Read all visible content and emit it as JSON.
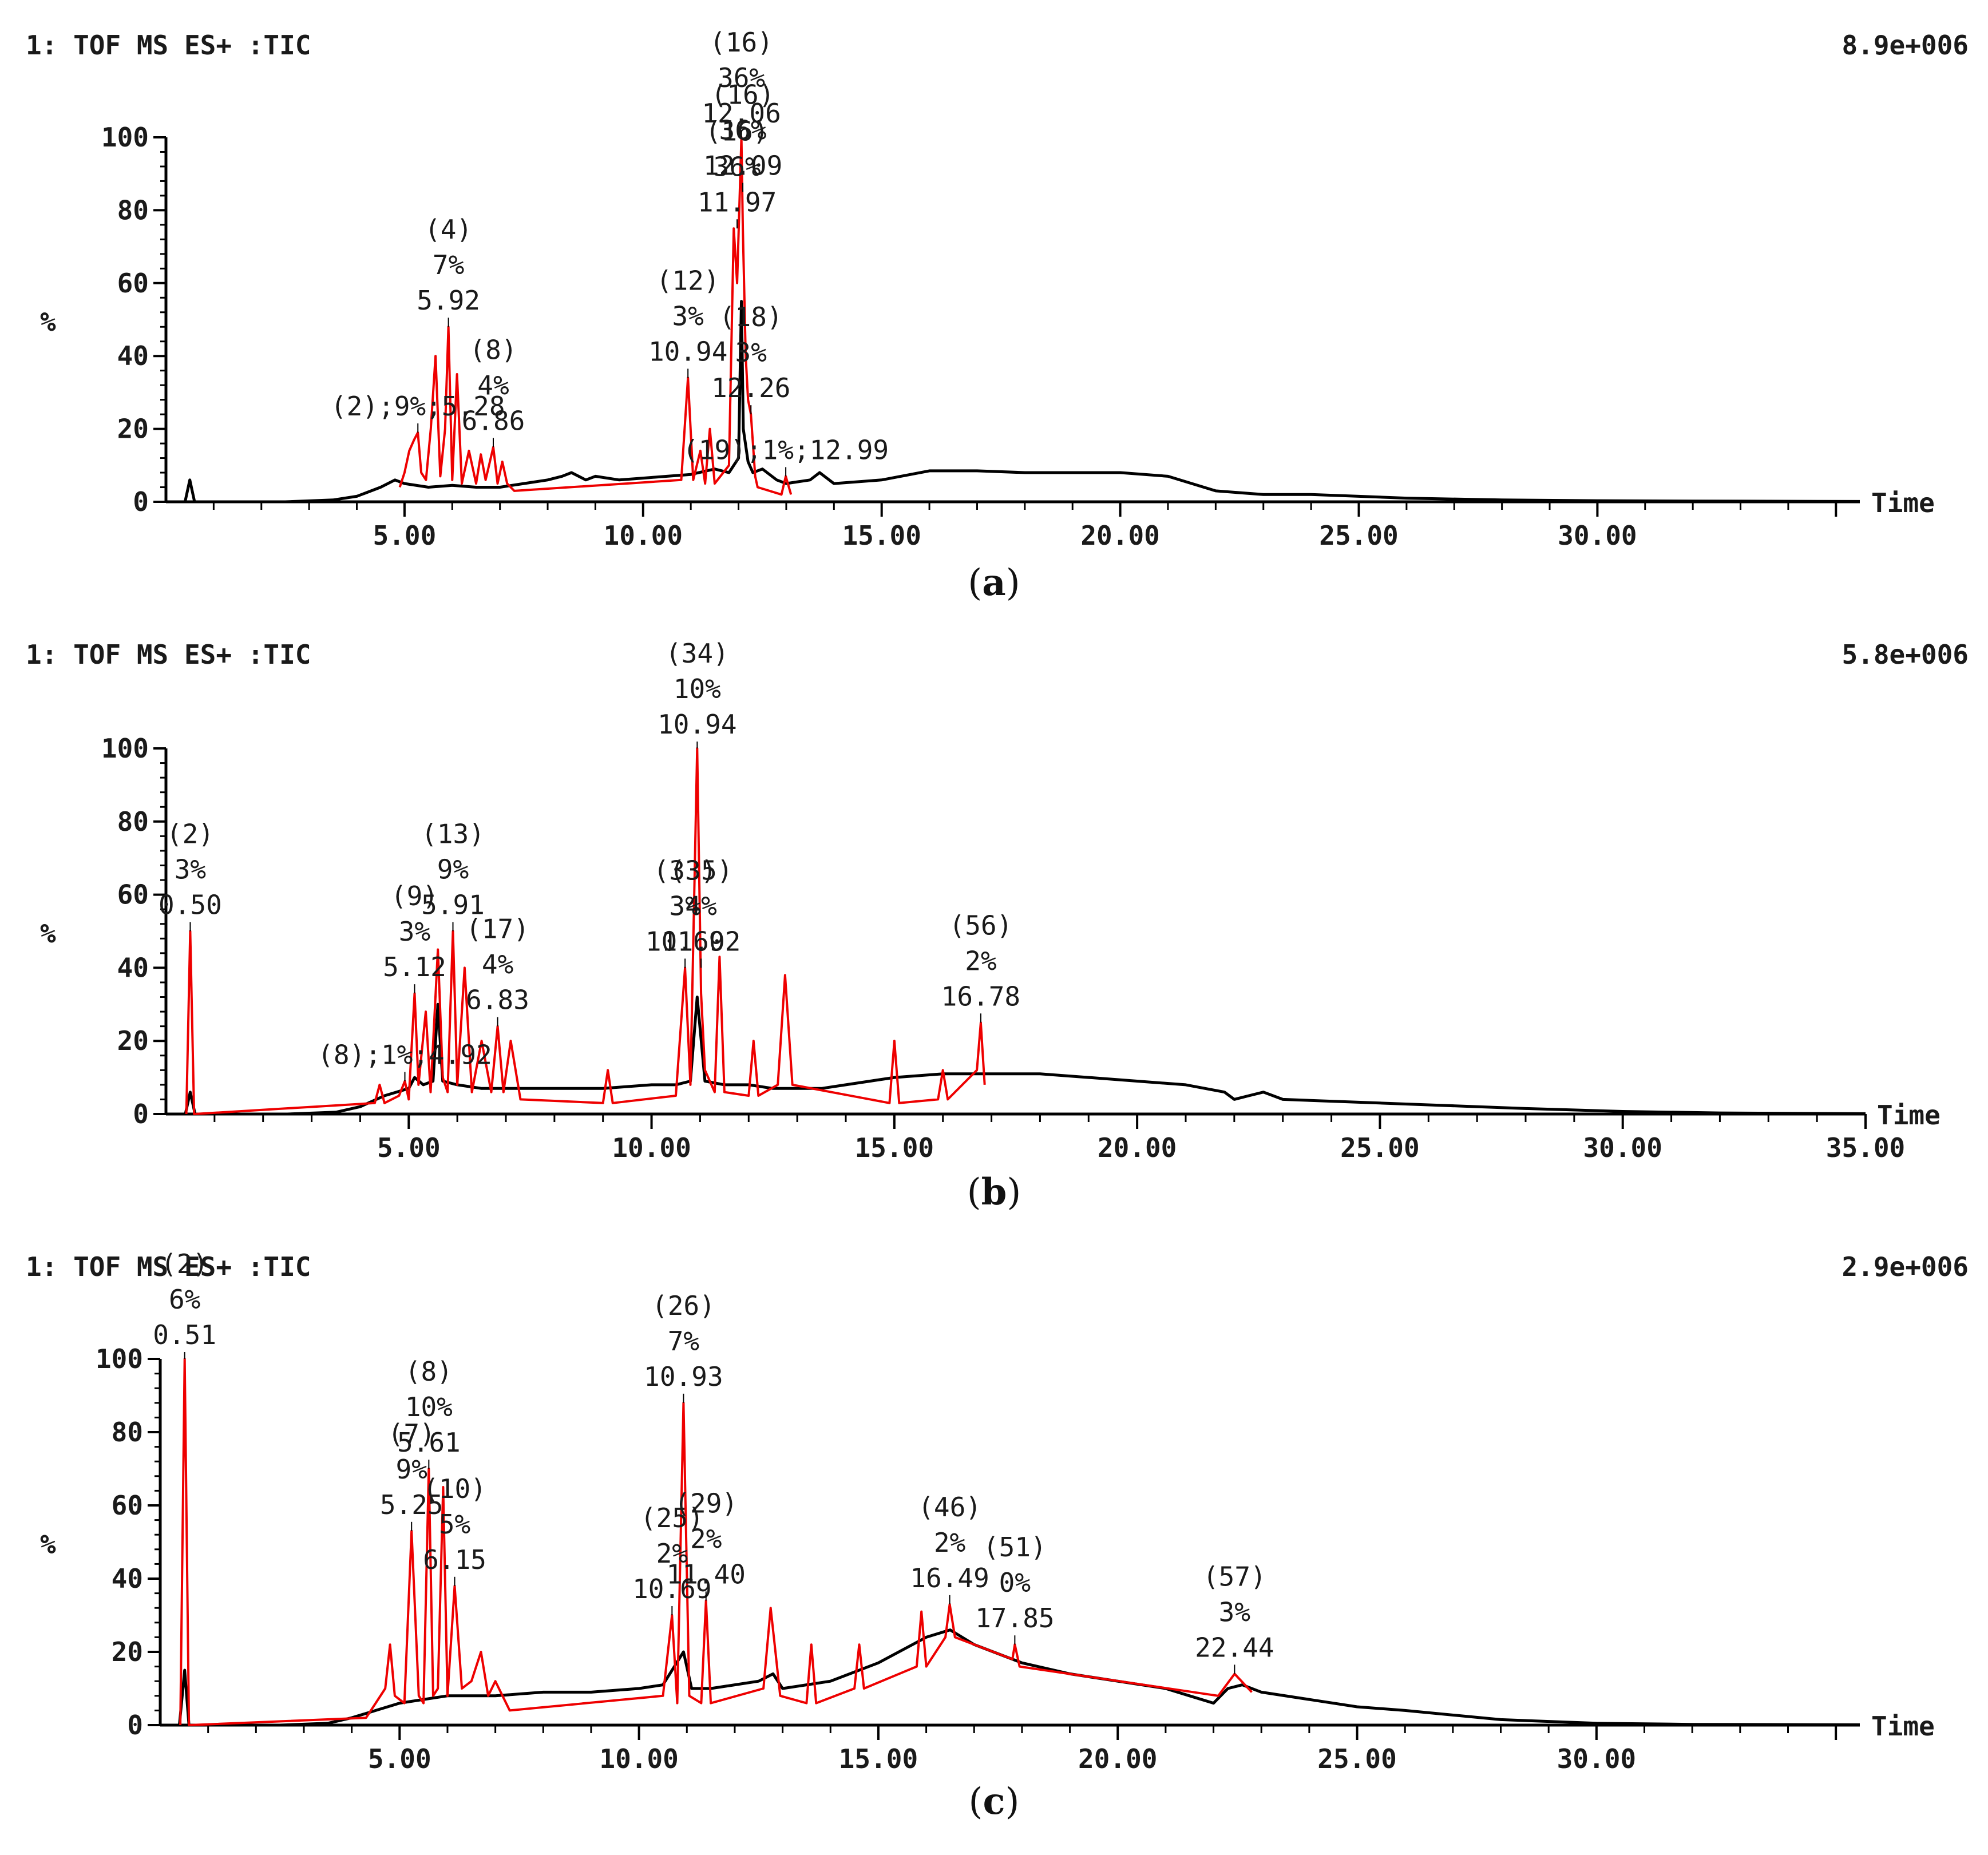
{
  "chart_data": [
    {
      "type": "line",
      "panel_label": "a",
      "header_left": "1: TOF MS ES+ :TIC",
      "header_right": "8.9e+006",
      "ylabel": "%",
      "xlabel": "Time",
      "xlim": [
        0,
        35.5
      ],
      "ylim": [
        0,
        100
      ],
      "x_ticks": [
        5,
        10,
        15,
        20,
        25,
        30
      ],
      "x_tick_labels": [
        "5.00",
        "10.00",
        "15.00",
        "20.00",
        "25.00",
        "30.00"
      ],
      "y_ticks": [
        0,
        20,
        40,
        60,
        80,
        100
      ],
      "y_tick_labels": [
        "0",
        "20",
        "40",
        "60",
        "80",
        "100"
      ],
      "series": [
        {
          "name": "TIC (black)",
          "color": "#000000",
          "x": [
            0,
            0.4,
            0.5,
            0.6,
            2.5,
            3.5,
            4.0,
            4.5,
            4.8,
            5.0,
            5.5,
            6.0,
            6.5,
            7.0,
            7.5,
            8.0,
            8.3,
            8.5,
            8.8,
            9.0,
            9.5,
            10.0,
            10.5,
            11.0,
            11.5,
            11.8,
            12.0,
            12.06,
            12.1,
            12.2,
            12.3,
            12.5,
            12.8,
            13.0,
            13.5,
            13.7,
            14.0,
            15.0,
            16.0,
            17.0,
            18.0,
            19.0,
            20.0,
            21.0,
            21.5,
            22.0,
            23.0,
            24.0,
            25.0,
            26.0,
            28.0,
            30.0,
            32.0,
            35.5
          ],
          "y": [
            0,
            0,
            6,
            0,
            0,
            0.5,
            1.5,
            4,
            6,
            5,
            4,
            4.5,
            4,
            4,
            5,
            6,
            7,
            8,
            6,
            7,
            6,
            6.5,
            7,
            7.5,
            9,
            8,
            12,
            55,
            20,
            11,
            8,
            9,
            6,
            5,
            6,
            8,
            5,
            6,
            8.5,
            8.5,
            8,
            8,
            8,
            7,
            5,
            3,
            2,
            2,
            1.5,
            1,
            0.5,
            0.3,
            0.2,
            0.1
          ]
        },
        {
          "name": "Detected peaks (red)",
          "color": "#ee0000",
          "x": [
            4.9,
            5.0,
            5.1,
            5.2,
            5.28,
            5.35,
            5.45,
            5.55,
            5.65,
            5.75,
            5.85,
            5.92,
            6.0,
            6.1,
            6.2,
            6.35,
            6.5,
            6.6,
            6.7,
            6.86,
            6.95,
            7.05,
            7.15,
            7.3,
            10.8,
            10.94,
            11.05,
            11.2,
            11.3,
            11.4,
            11.5,
            11.8,
            11.9,
            11.97,
            12.06,
            12.09,
            12.15,
            12.2,
            12.26,
            12.35,
            12.4,
            12.9,
            12.99,
            13.1
          ],
          "y": [
            4,
            8,
            14,
            17,
            19,
            8,
            6,
            20,
            40,
            7,
            20,
            48,
            6,
            35,
            5,
            14,
            5,
            13,
            6,
            15,
            5,
            11,
            5,
            3,
            6,
            34,
            6,
            14,
            5,
            20,
            5,
            10,
            75,
            60,
            100,
            75,
            40,
            28,
            24,
            7,
            4,
            2,
            7,
            2
          ]
        }
      ],
      "annotations": [
        {
          "lines": [
            "(2);9%;5.28"
          ],
          "x": 5.28,
          "y": 19
        },
        {
          "lines": [
            "(4)",
            "7%",
            "5.92"
          ],
          "x": 5.92,
          "y": 48
        },
        {
          "lines": [
            "(8)",
            "4%",
            "6.86"
          ],
          "x": 6.86,
          "y": 15
        },
        {
          "lines": [
            "(12)",
            "3%",
            "10.94"
          ],
          "x": 10.94,
          "y": 34
        },
        {
          "lines": [
            "(16)",
            "36%",
            "11.97"
          ],
          "x": 11.97,
          "y": 75
        },
        {
          "lines": [
            "(16)",
            "36%",
            "12.06"
          ],
          "x": 12.06,
          "y": 100
        },
        {
          "lines": [
            "(16)",
            "36%",
            "12.09"
          ],
          "x": 12.09,
          "y": 85
        },
        {
          "lines": [
            "(18)",
            "3%",
            "12.26"
          ],
          "x": 12.26,
          "y": 24
        },
        {
          "lines": [
            "(19);1%;12.99"
          ],
          "x": 12.99,
          "y": 7
        }
      ]
    },
    {
      "type": "line",
      "panel_label": "b",
      "header_left": "1: TOF MS ES+ :TIC",
      "header_right": "5.8e+006",
      "ylabel": "%",
      "xlabel": "Time",
      "xlim": [
        0,
        35.0
      ],
      "ylim": [
        0,
        100
      ],
      "x_ticks": [
        5,
        10,
        15,
        20,
        25,
        30,
        35
      ],
      "x_tick_labels": [
        "5.00",
        "10.00",
        "15.00",
        "20.00",
        "25.00",
        "30.00",
        "35.00"
      ],
      "y_ticks": [
        0,
        20,
        40,
        60,
        80,
        100
      ],
      "y_tick_labels": [
        "0",
        "20",
        "40",
        "60",
        "80",
        "100"
      ],
      "series": [
        {
          "name": "TIC (black)",
          "color": "#000000",
          "x": [
            0,
            0.4,
            0.5,
            0.6,
            2.5,
            3.5,
            4.0,
            4.5,
            5.0,
            5.12,
            5.3,
            5.5,
            5.6,
            5.7,
            6.0,
            6.5,
            7.0,
            8.0,
            9.0,
            10.0,
            10.5,
            10.8,
            10.94,
            11.1,
            11.5,
            12.0,
            12.5,
            13.0,
            13.5,
            14.0,
            15.0,
            16.0,
            17.0,
            18.0,
            19.0,
            20.0,
            21.0,
            21.8,
            22.0,
            22.3,
            22.6,
            23.0,
            24.0,
            25.0,
            26.0,
            28.0,
            30.0,
            32.0,
            35.0
          ],
          "y": [
            0,
            0,
            6,
            0,
            0,
            0.5,
            2,
            5,
            7,
            10,
            8,
            9,
            30,
            9,
            8,
            7,
            7,
            7,
            7,
            8,
            8,
            9,
            32,
            9,
            8,
            8,
            7,
            7,
            7,
            8,
            10,
            11,
            11,
            11,
            10,
            9,
            8,
            6,
            4,
            5,
            6,
            4,
            3.5,
            3,
            2.5,
            1.5,
            0.7,
            0.3,
            0.1
          ]
        },
        {
          "name": "Detected peaks (red)",
          "color": "#ee0000",
          "x": [
            0.42,
            0.5,
            0.58,
            4.3,
            4.4,
            4.5,
            4.8,
            4.92,
            5.0,
            5.12,
            5.2,
            5.35,
            5.45,
            5.6,
            5.7,
            5.8,
            5.91,
            6.0,
            6.15,
            6.3,
            6.5,
            6.7,
            6.83,
            6.95,
            7.1,
            7.3,
            9.0,
            9.1,
            9.2,
            10.5,
            10.69,
            10.8,
            10.94,
            11.02,
            11.1,
            11.3,
            11.4,
            11.5,
            12.0,
            12.1,
            12.2,
            12.6,
            12.75,
            12.9,
            14.9,
            15.0,
            15.1,
            15.9,
            16.0,
            16.1,
            16.7,
            16.78,
            16.86
          ],
          "y": [
            0,
            50,
            0,
            3,
            8,
            3,
            5,
            9,
            4,
            33,
            8,
            28,
            6,
            45,
            10,
            6,
            50,
            8,
            40,
            6,
            20,
            6,
            24,
            6,
            20,
            4,
            3,
            12,
            3,
            5,
            40,
            8,
            100,
            33,
            12,
            6,
            43,
            6,
            5,
            20,
            5,
            8,
            38,
            8,
            3,
            20,
            3,
            4,
            12,
            4,
            12,
            25,
            8
          ]
        }
      ],
      "annotations": [
        {
          "lines": [
            "(2)",
            "3%",
            "0.50"
          ],
          "x": 0.5,
          "y": 50
        },
        {
          "lines": [
            "(8);1%;4.92"
          ],
          "x": 4.92,
          "y": 9
        },
        {
          "lines": [
            "(9)",
            "3%",
            "5.12"
          ],
          "x": 5.12,
          "y": 33
        },
        {
          "lines": [
            "(13)",
            "9%",
            "5.91"
          ],
          "x": 5.91,
          "y": 50
        },
        {
          "lines": [
            "(17)",
            "4%",
            "6.83"
          ],
          "x": 6.83,
          "y": 24
        },
        {
          "lines": [
            "(33)",
            "3%",
            "10.69"
          ],
          "x": 10.69,
          "y": 40
        },
        {
          "lines": [
            "(34)",
            "10%",
            "10.94"
          ],
          "x": 10.94,
          "y": 100
        },
        {
          "lines": [
            "(35)",
            "4%",
            "11.02"
          ],
          "x": 11.02,
          "y": 40
        },
        {
          "lines": [
            "(56)",
            "2%",
            "16.78"
          ],
          "x": 16.78,
          "y": 25
        }
      ]
    },
    {
      "type": "line",
      "panel_label": "c",
      "header_left": "1: TOF MS ES+ :TIC",
      "header_right": "2.9e+006",
      "ylabel": "%",
      "xlabel": "Time",
      "xlim": [
        0,
        35.5
      ],
      "ylim": [
        0,
        100
      ],
      "x_ticks": [
        5,
        10,
        15,
        20,
        25,
        30
      ],
      "x_tick_labels": [
        "5.00",
        "10.00",
        "15.00",
        "20.00",
        "25.00",
        "30.00"
      ],
      "y_ticks": [
        0,
        20,
        40,
        60,
        80,
        100
      ],
      "y_tick_labels": [
        "0",
        "20",
        "40",
        "60",
        "80",
        "100"
      ],
      "series": [
        {
          "name": "TIC (black)",
          "color": "#000000",
          "x": [
            0,
            0.4,
            0.51,
            0.6,
            2.5,
            3.5,
            4.0,
            4.5,
            5.0,
            5.5,
            6.0,
            7.0,
            8.0,
            9.0,
            10.0,
            10.5,
            10.93,
            11.1,
            11.5,
            12.0,
            12.5,
            12.8,
            13.0,
            13.5,
            14.0,
            15.0,
            16.0,
            16.5,
            17.0,
            18.0,
            19.0,
            20.0,
            21.0,
            21.5,
            22.0,
            22.3,
            22.6,
            23.0,
            24.0,
            25.0,
            26.0,
            28.0,
            30.0,
            32.0,
            35.5
          ],
          "y": [
            0,
            0,
            15,
            0,
            0,
            0.5,
            2,
            4,
            6,
            7,
            8,
            8,
            9,
            9,
            10,
            11,
            20,
            10,
            10,
            11,
            12,
            14,
            10,
            11,
            12,
            17,
            24,
            26,
            22,
            17,
            14,
            12,
            10,
            8,
            6,
            10,
            11,
            9,
            7,
            5,
            4,
            1.5,
            0.5,
            0.2,
            0.1
          ]
        },
        {
          "name": "Detected peaks (red)",
          "color": "#ee0000",
          "x": [
            0.42,
            0.51,
            0.6,
            4.3,
            4.5,
            4.7,
            4.8,
            4.9,
            5.1,
            5.25,
            5.4,
            5.5,
            5.61,
            5.7,
            5.8,
            5.91,
            6.0,
            6.15,
            6.3,
            6.5,
            6.7,
            6.85,
            7.0,
            7.3,
            10.5,
            10.69,
            10.8,
            10.93,
            11.05,
            11.3,
            11.4,
            11.5,
            12.6,
            12.75,
            12.85,
            12.95,
            13.5,
            13.6,
            13.7,
            14.5,
            14.6,
            14.7,
            15.8,
            15.9,
            16.0,
            16.4,
            16.49,
            16.6,
            17.8,
            17.85,
            17.95,
            22.1,
            22.44,
            22.8
          ],
          "y": [
            0,
            100,
            0,
            2,
            6,
            10,
            22,
            8,
            6,
            53,
            8,
            6,
            70,
            8,
            10,
            65,
            8,
            38,
            10,
            12,
            20,
            8,
            12,
            4,
            8,
            30,
            6,
            88,
            8,
            6,
            34,
            6,
            10,
            32,
            20,
            8,
            6,
            22,
            6,
            10,
            22,
            10,
            16,
            31,
            16,
            24,
            33,
            24,
            18,
            22,
            16,
            8,
            14,
            9
          ]
        }
      ],
      "annotations": [
        {
          "lines": [
            "(2)",
            "6%",
            "0.51"
          ],
          "x": 0.51,
          "y": 100
        },
        {
          "lines": [
            "(7)",
            "9%",
            "5.25"
          ],
          "x": 5.25,
          "y": 53
        },
        {
          "lines": [
            "(8)",
            "10%",
            "5.61"
          ],
          "x": 5.61,
          "y": 70
        },
        {
          "lines": [
            "(10)",
            "5%",
            "6.15"
          ],
          "x": 6.15,
          "y": 38
        },
        {
          "lines": [
            "(25)",
            "2%",
            "10.69"
          ],
          "x": 10.69,
          "y": 30
        },
        {
          "lines": [
            "(26)",
            "7%",
            "10.93"
          ],
          "x": 10.93,
          "y": 88
        },
        {
          "lines": [
            "(29)",
            "2%",
            "11.40"
          ],
          "x": 11.4,
          "y": 34
        },
        {
          "lines": [
            "(46)",
            "2%",
            "16.49"
          ],
          "x": 16.49,
          "y": 33
        },
        {
          "lines": [
            "(51)",
            "0%",
            "17.85"
          ],
          "x": 17.85,
          "y": 22
        },
        {
          "lines": [
            "(57)",
            "3%",
            "22.44"
          ],
          "x": 22.44,
          "y": 14
        }
      ]
    }
  ]
}
